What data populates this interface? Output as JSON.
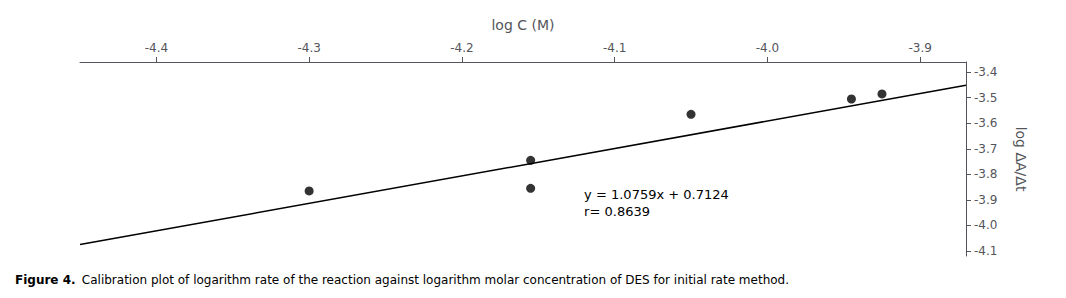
{
  "chart_data": {
    "type": "scatter",
    "title": "Figure 4.",
    "subtitle": "Calibration plot of logarithm rate of the reaction against logarithm molar concentration of DES for initial rate method.",
    "x_label": "log C (M)",
    "y_label": "log ΔA/Δt",
    "annotations": [
      {
        "text": "y = 1.0759x + 0.7124\nr= 0.8639",
        "x": -4.12,
        "y": -3.845
      }
    ],
    "series": [
      {
        "type": "scatter",
        "color": "#000000",
        "marker": "circle",
        "x": [
          -4.3,
          -4.155,
          -4.155,
          -4.05,
          -3.945,
          -3.925
        ],
        "values": [
          -3.865,
          -3.855,
          -3.745,
          -3.565,
          -3.505,
          -3.485
        ]
      },
      {
        "type": "line",
        "color": "#000000",
        "line_style": "solid",
        "x": [
          -4.45,
          -3.87
        ],
        "values": [
          -4.075355,
          -3.451333
        ]
      }
    ],
    "xlim": [
      -4.45,
      -3.87
    ],
    "ylim": [
      -4.12,
      -3.36
    ],
    "xticks": [
      -4.4,
      -4.3,
      -4.2,
      -4.1,
      {
        "value": -4.0,
        "label": "-4.0"
      },
      -3.9
    ],
    "yticks": [
      -4.1,
      {
        "value": -4.0,
        "label": "-4.0"
      },
      -3.9,
      -3.8,
      -3.7,
      -3.6,
      -3.5,
      -3.4
    ],
    "grid": false
  }
}
